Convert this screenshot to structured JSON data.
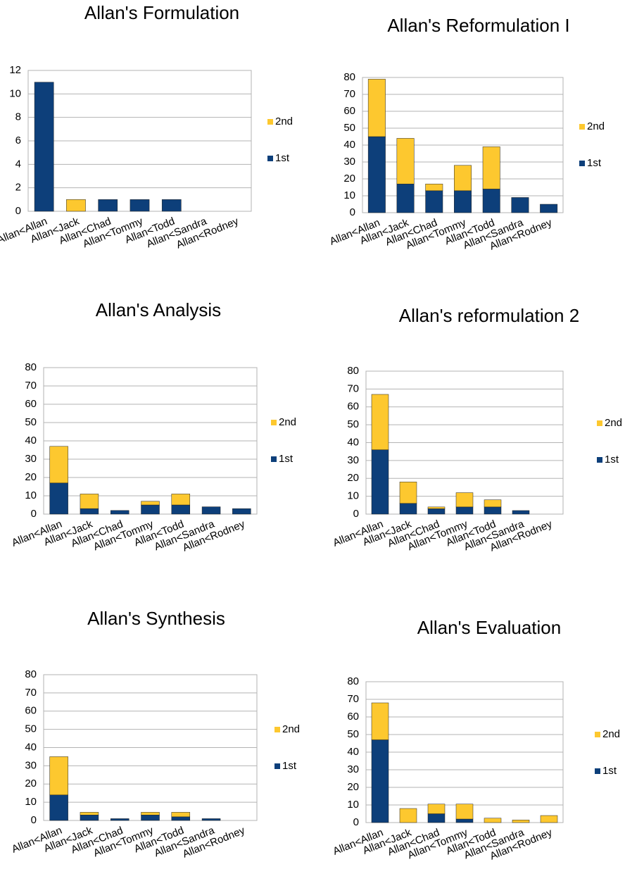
{
  "chart_data": [
    {
      "type": "bar",
      "title": "Allan's Formulation",
      "categories": [
        "Allan<Allan",
        "Allan<Jack",
        "Allan<Chad",
        "Allan<Tommy",
        "Allan<Todd",
        "Allan<Sandra",
        "Allan<Rodney"
      ],
      "series": [
        {
          "name": "1st",
          "color": "#0d3f7a",
          "values": [
            11,
            0,
            1,
            1,
            1,
            0,
            0
          ]
        },
        {
          "name": "2nd",
          "color": "#fdc82f",
          "values": [
            0,
            1,
            0,
            0,
            0,
            0,
            0
          ]
        }
      ],
      "ylim": [
        0,
        12
      ],
      "yticks": [
        0,
        2,
        4,
        6,
        8,
        10,
        12
      ],
      "grid": true,
      "stacked": true
    },
    {
      "type": "bar",
      "title": "Allan's Reformulation I",
      "categories": [
        "Allan<Allan",
        "Allan<Jack",
        "Allan<Chad",
        "Allan<Tommy",
        "Allan<Todd",
        "Allan<Sandra",
        "Allan<Rodney"
      ],
      "series": [
        {
          "name": "1st",
          "color": "#0d3f7a",
          "values": [
            45,
            17,
            13,
            13,
            14,
            9,
            5
          ]
        },
        {
          "name": "2nd",
          "color": "#fdc82f",
          "values": [
            34,
            27,
            4,
            15,
            25,
            0,
            0
          ]
        }
      ],
      "ylim": [
        0,
        80
      ],
      "yticks": [
        0,
        10,
        20,
        30,
        40,
        50,
        60,
        70,
        80
      ],
      "grid": true,
      "stacked": true
    },
    {
      "type": "bar",
      "title": "Allan's Analysis",
      "categories": [
        "Allan<Allan",
        "Allan<Jack",
        "Allan<Chad",
        "Allan<Tommy",
        "Allan<Todd",
        "Allan<Sandra",
        "Allan<Rodney"
      ],
      "series": [
        {
          "name": "1st",
          "color": "#0d3f7a",
          "values": [
            17,
            3,
            2,
            5,
            5,
            4,
            3
          ]
        },
        {
          "name": "2nd",
          "color": "#fdc82f",
          "values": [
            20,
            8,
            0,
            2,
            6,
            0,
            0
          ]
        }
      ],
      "ylim": [
        0,
        80
      ],
      "yticks": [
        0,
        10,
        20,
        30,
        40,
        50,
        60,
        70,
        80
      ],
      "grid": true,
      "stacked": true
    },
    {
      "type": "bar",
      "title": "Allan's reformulation 2",
      "categories": [
        "Allan<Allan",
        "Allan<Jack",
        "Allan<Chad",
        "Allan<Tommy",
        "Allan<Todd",
        "Allan<Sandra",
        "Allan<Rodney"
      ],
      "series": [
        {
          "name": "1st",
          "color": "#0d3f7a",
          "values": [
            36,
            6,
            3,
            4,
            4,
            2,
            0
          ]
        },
        {
          "name": "2nd",
          "color": "#fdc82f",
          "values": [
            31,
            12,
            1,
            8,
            4,
            0,
            0
          ]
        }
      ],
      "ylim": [
        0,
        80
      ],
      "yticks": [
        0,
        10,
        20,
        30,
        40,
        50,
        60,
        70,
        80
      ],
      "grid": true,
      "stacked": true
    },
    {
      "type": "bar",
      "title": "Allan's Synthesis",
      "categories": [
        "Allan<Allan",
        "Allan<Jack",
        "Allan<Chad",
        "Allan<Tommy",
        "Allan<Todd",
        "Allan<Sandra",
        "Allan<Rodney"
      ],
      "series": [
        {
          "name": "1st",
          "color": "#0d3f7a",
          "values": [
            14,
            3,
            1,
            3,
            2,
            1,
            0
          ]
        },
        {
          "name": "2nd",
          "color": "#fdc82f",
          "values": [
            21,
            1.5,
            0,
            1.5,
            2.5,
            0,
            0
          ]
        }
      ],
      "ylim": [
        0,
        80
      ],
      "yticks": [
        0,
        10,
        20,
        30,
        40,
        50,
        60,
        70,
        80
      ],
      "grid": true,
      "stacked": true
    },
    {
      "type": "bar",
      "title": "Allan's Evaluation",
      "categories": [
        "Allan<Allan",
        "Allan<Jack",
        "Allan<Chad",
        "Allan<Tommy",
        "Allan<Todd",
        "Allan<Sandra",
        "Allan<Rodney"
      ],
      "series": [
        {
          "name": "1st",
          "color": "#0d3f7a",
          "values": [
            47,
            0,
            5,
            2,
            0,
            0,
            0
          ]
        },
        {
          "name": "2nd",
          "color": "#fdc82f",
          "values": [
            21,
            8,
            5.5,
            8.5,
            2.5,
            1.5,
            4
          ]
        }
      ],
      "ylim": [
        0,
        80
      ],
      "yticks": [
        0,
        10,
        20,
        30,
        40,
        50,
        60,
        70,
        80
      ],
      "grid": true,
      "stacked": true
    }
  ]
}
